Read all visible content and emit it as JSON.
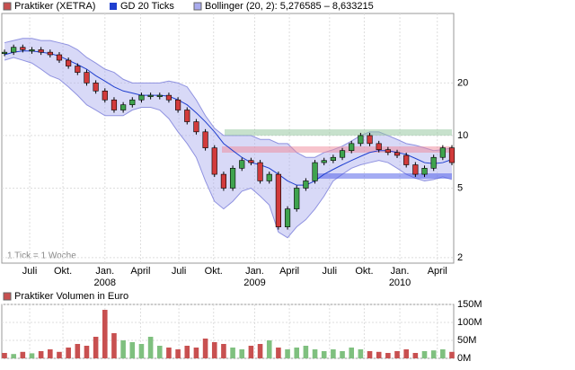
{
  "chart_data": [
    {
      "type": "candlestick",
      "log_scale": true,
      "grid": true,
      "annotation": "1 Tick = 1 Woche",
      "ylim": [
        1.86,
        50
      ],
      "yticks": [
        2,
        5,
        10,
        20
      ],
      "xticks": [
        {
          "value": 2.76,
          "label": "Juli"
        },
        {
          "value": 6.4,
          "label": "Okt."
        },
        {
          "value": 11.0,
          "label": "Jan."
        },
        {
          "value": 14.9,
          "label": "April"
        },
        {
          "value": 19.1,
          "label": "Juli"
        },
        {
          "value": 22.9,
          "label": "Okt."
        },
        {
          "value": 27.4,
          "label": "Jan."
        },
        {
          "value": 31.2,
          "label": "April"
        },
        {
          "value": 35.6,
          "label": "Juli"
        },
        {
          "value": 39.4,
          "label": "Okt."
        },
        {
          "value": 43.3,
          "label": "Jan."
        },
        {
          "value": 47.4,
          "label": "April"
        }
      ],
      "year_labels": [
        {
          "value": 11.0,
          "label": "2008"
        },
        {
          "value": 27.4,
          "label": "2009"
        },
        {
          "value": 43.3,
          "label": "2010"
        }
      ],
      "series": [
        {
          "name": "Praktiker (XETRA)",
          "color": "#c85050",
          "values": [
            30,
            32,
            31,
            31,
            30,
            29,
            27,
            25,
            23,
            20,
            18,
            16,
            14,
            15,
            16,
            17,
            17,
            17,
            16,
            14,
            12,
            10.5,
            8.5,
            6,
            5,
            6.5,
            7.2,
            7,
            5.5,
            6,
            3,
            3.8,
            5,
            5.5,
            7,
            7.2,
            7.5,
            8.2,
            9,
            10,
            9,
            8.3,
            8,
            7.7,
            6.8,
            6,
            6.5,
            7.5,
            8.5,
            7
          ]
        },
        {
          "name": "GD 20 Ticks",
          "color": "#1f3fcf",
          "values": [
            29,
            30,
            30.5,
            30.5,
            30,
            29.5,
            28.5,
            27,
            25.5,
            24,
            22,
            20.5,
            19,
            18,
            17.5,
            17,
            17,
            17,
            16.8,
            16,
            15,
            13.5,
            12,
            10.5,
            9,
            8.2,
            7.5,
            7,
            6.8,
            6.5,
            6,
            5.5,
            5.2,
            5.2,
            5.5,
            6,
            6.4,
            6.8,
            7.2,
            7.6,
            8,
            8.2,
            8.2,
            8,
            7.8,
            7.4,
            7,
            6.9,
            7,
            7.3
          ]
        },
        {
          "name": "Bollinger (20, 2): 5,276585 – 8,633215",
          "color": "#a9abee",
          "upper": [
            34,
            35,
            36,
            36,
            35,
            35,
            34,
            33,
            31,
            28,
            26,
            24,
            23,
            21,
            20,
            20,
            20,
            20,
            20.5,
            20,
            19,
            16,
            13,
            11,
            10,
            10,
            10,
            10,
            9.5,
            9.5,
            9,
            9,
            8,
            7.5,
            7.5,
            8,
            8.3,
            8.7,
            9.3,
            10,
            10.5,
            10.5,
            10,
            9.5,
            9,
            8.8,
            8.5,
            8.2,
            8.3,
            8.5
          ],
          "lower": [
            27,
            28,
            27,
            26,
            24,
            22,
            21,
            19,
            17,
            15,
            14,
            13,
            13,
            13,
            14,
            14.5,
            14.5,
            14,
            12.5,
            10.5,
            9,
            7.5,
            5.5,
            4.2,
            3.8,
            4.2,
            4.8,
            5,
            4.5,
            4,
            2.8,
            2.6,
            3,
            3.3,
            3.8,
            4.5,
            5.5,
            6,
            6.5,
            6.8,
            7,
            7.2,
            7,
            6.5,
            6,
            5.7,
            5.5,
            5.6,
            5.8,
            5.6
          ]
        }
      ]
    },
    {
      "type": "bar",
      "ylim": [
        0,
        150
      ],
      "yticks": [
        {
          "value": 0,
          "label": "0M"
        },
        {
          "value": 50,
          "label": "50M"
        },
        {
          "value": 100,
          "label": "100M"
        },
        {
          "value": 150,
          "label": "150M"
        }
      ],
      "series": [
        {
          "name": "Praktiker Volumen in Euro",
          "color": "#c85050",
          "values": [
            15,
            12,
            18,
            14,
            20,
            25,
            18,
            30,
            40,
            35,
            60,
            135,
            70,
            50,
            45,
            40,
            60,
            35,
            30,
            25,
            35,
            30,
            55,
            45,
            40,
            30,
            25,
            35,
            40,
            50,
            30,
            25,
            30,
            35,
            25,
            20,
            25,
            20,
            30,
            25,
            20,
            18,
            15,
            20,
            25,
            15,
            20,
            22,
            25,
            18
          ]
        }
      ]
    }
  ]
}
